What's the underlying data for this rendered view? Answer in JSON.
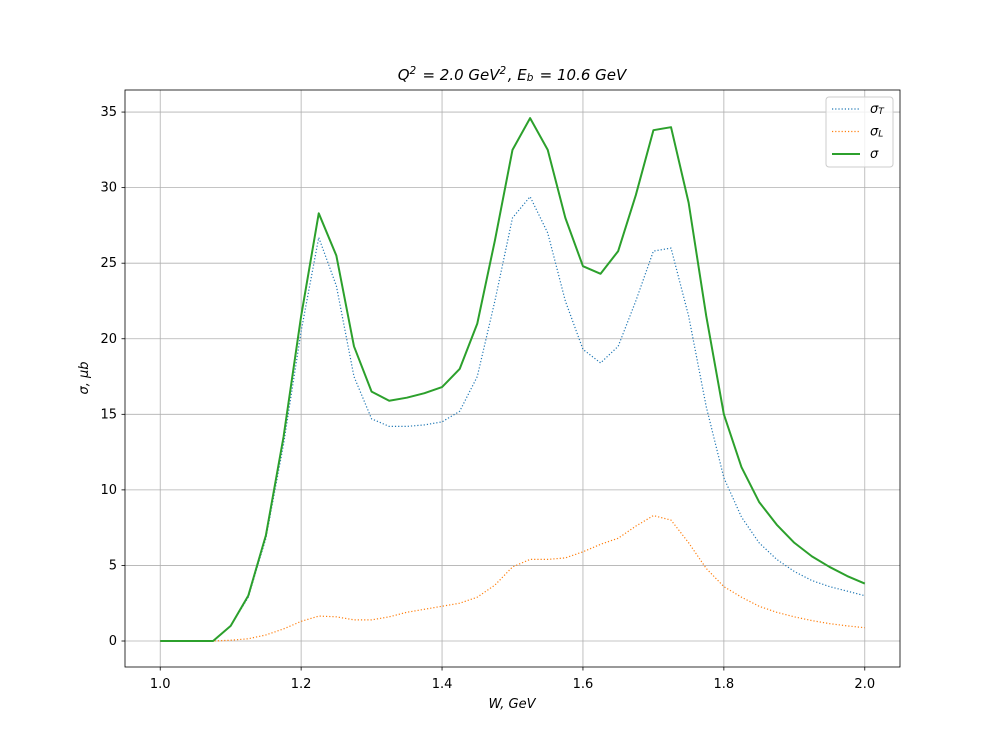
{
  "chart_data": {
    "type": "line",
    "title": "Q^2 = 2.0 GeV^2,  E_b = 10.6 GeV",
    "xlabel": "W, GeV",
    "ylabel": "σ, μb",
    "x": [
      1.0,
      1.025,
      1.05,
      1.075,
      1.1,
      1.125,
      1.15,
      1.175,
      1.2,
      1.225,
      1.25,
      1.275,
      1.3,
      1.325,
      1.35,
      1.375,
      1.4,
      1.425,
      1.45,
      1.475,
      1.5,
      1.525,
      1.55,
      1.575,
      1.6,
      1.625,
      1.65,
      1.675,
      1.7,
      1.725,
      1.75,
      1.775,
      1.8,
      1.825,
      1.85,
      1.875,
      1.9,
      1.925,
      1.95,
      1.975,
      2.0
    ],
    "series": [
      {
        "name": "σ_T",
        "color": "#1f77b4",
        "linestyle": "dotted",
        "values": [
          0,
          0,
          0,
          0,
          1.0,
          2.9,
          6.8,
          13.0,
          20.5,
          26.7,
          23.5,
          17.5,
          14.7,
          14.2,
          14.2,
          14.3,
          14.5,
          15.2,
          17.5,
          22.5,
          28.0,
          29.4,
          27.0,
          22.5,
          19.3,
          18.4,
          19.5,
          22.5,
          25.8,
          26.0,
          21.5,
          15.5,
          10.8,
          8.2,
          6.5,
          5.4,
          4.6,
          4.0,
          3.6,
          3.3,
          3.0
        ]
      },
      {
        "name": "σ_L",
        "color": "#ff7f0e",
        "linestyle": "dotted",
        "values": [
          0,
          0,
          0,
          0,
          0.05,
          0.15,
          0.4,
          0.8,
          1.3,
          1.65,
          1.6,
          1.4,
          1.4,
          1.6,
          1.9,
          2.1,
          2.3,
          2.5,
          2.9,
          3.7,
          4.9,
          5.4,
          5.4,
          5.5,
          5.9,
          6.4,
          6.8,
          7.6,
          8.3,
          8.0,
          6.5,
          4.8,
          3.6,
          2.9,
          2.3,
          1.9,
          1.6,
          1.35,
          1.15,
          1.0,
          0.88
        ]
      },
      {
        "name": "σ",
        "color": "#2ca02c",
        "linestyle": "solid",
        "values": [
          0,
          0,
          0,
          0,
          1.0,
          3.0,
          7.0,
          13.5,
          21.5,
          28.3,
          25.5,
          19.5,
          16.5,
          15.9,
          16.1,
          16.4,
          16.8,
          18.0,
          21.0,
          26.5,
          32.5,
          34.6,
          32.5,
          28.0,
          24.8,
          24.3,
          25.8,
          29.5,
          33.8,
          34.0,
          29.0,
          21.5,
          15.0,
          11.5,
          9.2,
          7.7,
          6.5,
          5.6,
          4.9,
          4.3,
          3.8
        ]
      }
    ],
    "xlim": [
      0.95,
      2.05
    ],
    "ylim": [
      -1.72,
      36.46
    ],
    "xticks": [
      {
        "value": 1,
        "label": "1.0"
      },
      1.2,
      1.4,
      1.6,
      1.8,
      {
        "value": 2,
        "label": "2.0"
      }
    ],
    "yticks": [
      0,
      5,
      10,
      15,
      20,
      25,
      30,
      35
    ],
    "grid": true,
    "legend": "upper right"
  }
}
